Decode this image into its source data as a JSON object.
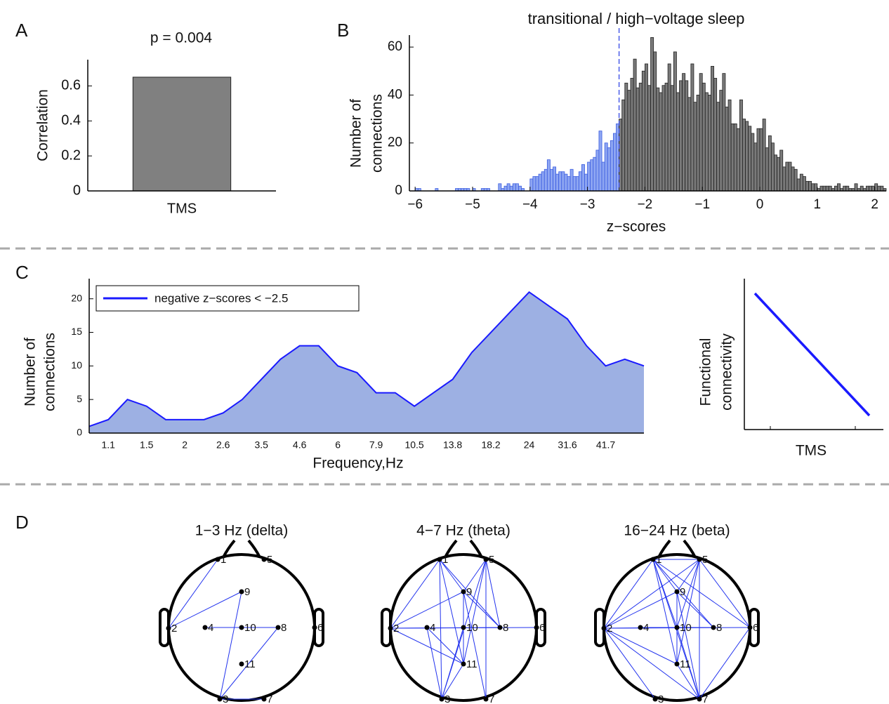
{
  "panel_labels": [
    "A",
    "B",
    "C",
    "D"
  ],
  "chart_data": [
    {
      "type": "bar",
      "title": "p = 0.004",
      "ylabel": "Correlation",
      "categories": [
        "TMS"
      ],
      "values": [
        0.65
      ],
      "color": "#808080",
      "ylim": [
        0,
        0.75
      ],
      "yticks": [
        0,
        0.2,
        0.4,
        0.6
      ]
    },
    {
      "type": "histogram",
      "title": "transitional / high−voltage sleep",
      "ylabel": [
        "Number of",
        "connections"
      ],
      "xlabel": "z−scores",
      "bins": [
        -6,
        -5.95,
        -5.9,
        -5.85,
        -5.8,
        -5.75,
        -5.7,
        -5.65,
        -5.6,
        -5.55,
        -5.5,
        -5.45,
        -5.4,
        -5.35,
        -5.3,
        -5.25,
        -5.2,
        -5.15,
        -5.1,
        -5.05,
        -5,
        -4.95,
        -4.9,
        -4.85,
        -4.8,
        -4.75,
        -4.7,
        -4.65,
        -4.6,
        -4.55,
        -4.5,
        -4.45,
        -4.4,
        -4.35,
        -4.3,
        -4.25,
        -4.2,
        -4.15,
        -4.1,
        -4.05,
        -4,
        -3.95,
        -3.9,
        -3.85,
        -3.8,
        -3.75,
        -3.7,
        -3.65,
        -3.6,
        -3.55,
        -3.5,
        -3.45,
        -3.4,
        -3.35,
        -3.3,
        -3.25,
        -3.2,
        -3.15,
        -3.1,
        -3.05,
        -3,
        -2.95,
        -2.9,
        -2.85,
        -2.8,
        -2.75,
        -2.7,
        -2.65,
        -2.6,
        -2.55,
        -2.5,
        -2.45,
        -2.4,
        -2.35,
        -2.3,
        -2.25,
        -2.2,
        -2.15,
        -2.1,
        -2.05,
        -2,
        -1.95,
        -1.9,
        -1.85,
        -1.8,
        -1.75,
        -1.7,
        -1.65,
        -1.6,
        -1.55,
        -1.5,
        -1.45,
        -1.4,
        -1.35,
        -1.3,
        -1.25,
        -1.2,
        -1.15,
        -1.1,
        -1.05,
        -1,
        -0.95,
        -0.9,
        -0.85,
        -0.8,
        -0.75,
        -0.7,
        -0.65,
        -0.6,
        -0.55,
        -0.5,
        -0.45,
        -0.4,
        -0.35,
        -0.3,
        -0.25,
        -0.2,
        -0.15,
        -0.1,
        -0.05,
        0,
        0.05,
        0.1,
        0.15,
        0.2,
        0.25,
        0.3,
        0.35,
        0.4,
        0.45,
        0.5,
        0.55,
        0.6,
        0.65,
        0.7,
        0.75,
        0.8,
        0.85,
        0.9,
        0.95,
        1,
        1.05,
        1.1,
        1.15,
        1.2,
        1.25,
        1.3,
        1.35,
        1.4,
        1.45,
        1.5,
        1.55,
        1.6,
        1.65,
        1.7,
        1.75,
        1.8,
        1.85,
        1.9,
        1.95,
        2,
        2.05,
        2.1,
        2.15,
        2.2
      ],
      "counts": [
        1,
        1,
        0,
        0,
        0,
        0,
        0,
        1,
        0,
        0,
        0,
        0,
        0,
        0,
        1,
        1,
        1,
        1,
        1,
        0,
        1,
        0,
        0,
        1,
        1,
        1,
        0,
        0,
        0,
        3,
        1,
        2,
        3,
        2,
        3,
        3,
        2,
        1,
        0,
        0,
        5,
        6,
        6,
        7,
        8,
        9,
        13,
        9,
        10,
        7,
        8,
        8,
        7,
        6,
        9,
        6,
        6,
        8,
        11,
        7,
        12,
        13,
        14,
        17,
        25,
        12,
        20,
        18,
        21,
        24,
        28,
        30,
        38,
        45,
        42,
        47,
        55,
        43,
        45,
        50,
        53,
        44,
        64,
        58,
        43,
        41,
        44,
        45,
        53,
        44,
        58,
        41,
        46,
        49,
        46,
        39,
        53,
        37,
        40,
        49,
        45,
        41,
        40,
        52,
        47,
        37,
        42,
        49,
        35,
        38,
        28,
        28,
        26,
        38,
        30,
        29,
        27,
        24,
        20,
        26,
        26,
        30,
        18,
        23,
        20,
        15,
        14,
        17,
        10,
        12,
        12,
        10,
        9,
        5,
        7,
        6,
        4,
        4,
        3,
        3,
        1,
        2,
        2,
        2,
        2,
        1,
        2,
        3,
        1,
        2,
        2,
        1,
        1,
        3,
        1,
        2,
        1,
        2,
        2,
        2,
        3,
        2,
        2,
        1
      ],
      "threshold": -2.45,
      "color_below": "#8ea6f2",
      "edge_below": "#3a5ce0",
      "color_above": "#7a7a7a",
      "edge_above": "#222222",
      "threshold_color": "#4a5ce8",
      "xlim": [
        -6.1,
        2.2
      ],
      "ylim": [
        0,
        65
      ],
      "xticks": [
        {
          "value": -6,
          "label": "−6"
        },
        {
          "value": -5,
          "label": "−5"
        },
        {
          "value": -4,
          "label": "−4"
        },
        {
          "value": -3,
          "label": "−3"
        },
        {
          "value": -2,
          "label": "−2"
        },
        {
          "value": -1,
          "label": "−1"
        },
        0,
        1,
        2
      ],
      "yticks": [
        0,
        20,
        40,
        60
      ]
    },
    {
      "type": "area",
      "ylabel": [
        "Number of",
        "connections"
      ],
      "xlabel": "Frequency,Hz",
      "categories": [
        null,
        "1.1",
        null,
        "1.5",
        null,
        "2",
        null,
        "2.6",
        null,
        "3.5",
        null,
        "4.6",
        null,
        "6",
        null,
        "7.9",
        null,
        "10.5",
        null,
        "13.8",
        null,
        "18.2",
        null,
        "24",
        null,
        "31.6",
        null,
        "41.7",
        null,
        null
      ],
      "series": [
        {
          "name": "negative z−scores < −2.5",
          "color": "#1a1aff",
          "fill": "#9db0e3",
          "values": [
            1,
            2,
            5,
            4,
            2,
            2,
            2,
            3,
            5,
            8,
            11,
            13,
            13,
            10,
            9,
            6,
            6,
            4,
            6,
            8,
            12,
            15,
            18,
            21,
            19,
            17,
            13,
            10,
            11,
            10
          ]
        }
      ],
      "legend": "upper left",
      "ylim": [
        0,
        23
      ],
      "yticks": [
        0,
        5,
        10,
        15,
        20
      ]
    },
    {
      "type": "line",
      "ylabel": [
        "Functional",
        "connectivity"
      ],
      "xlabel": "TMS",
      "color": "#1a1aff"
    }
  ],
  "electrodes": [
    "1",
    "2",
    "3",
    "4",
    "5",
    "6",
    "7",
    "8",
    "9",
    "10",
    "11"
  ],
  "head_maps": [
    {
      "title": "1−3 Hz (delta)",
      "connections": [
        [
          0,
          1
        ],
        [
          1,
          8
        ],
        [
          8,
          2
        ],
        [
          3,
          7
        ],
        [
          7,
          2
        ],
        [
          2,
          6
        ]
      ]
    },
    {
      "title": "4−7 Hz (theta)",
      "connections": [
        [
          0,
          1
        ],
        [
          0,
          8
        ],
        [
          0,
          10
        ],
        [
          0,
          2
        ],
        [
          0,
          7
        ],
        [
          1,
          8
        ],
        [
          1,
          7
        ],
        [
          1,
          10
        ],
        [
          1,
          5
        ],
        [
          3,
          2
        ],
        [
          3,
          10
        ],
        [
          4,
          8
        ],
        [
          4,
          7
        ],
        [
          4,
          10
        ],
        [
          4,
          2
        ],
        [
          4,
          6
        ],
        [
          8,
          7
        ],
        [
          8,
          10
        ],
        [
          8,
          6
        ],
        [
          9,
          10
        ],
        [
          9,
          2
        ],
        [
          10,
          2
        ]
      ]
    },
    {
      "title": "16−24 Hz (beta)",
      "connections": [
        [
          0,
          1
        ],
        [
          0,
          8
        ],
        [
          0,
          9
        ],
        [
          0,
          10
        ],
        [
          0,
          6
        ],
        [
          0,
          7
        ],
        [
          0,
          5
        ],
        [
          0,
          4
        ],
        [
          1,
          4
        ],
        [
          1,
          8
        ],
        [
          1,
          9
        ],
        [
          1,
          10
        ],
        [
          1,
          6
        ],
        [
          1,
          2
        ],
        [
          1,
          5
        ],
        [
          4,
          8
        ],
        [
          4,
          9
        ],
        [
          4,
          10
        ],
        [
          4,
          6
        ],
        [
          4,
          5
        ],
        [
          8,
          10
        ],
        [
          8,
          6
        ],
        [
          9,
          6
        ],
        [
          10,
          6
        ],
        [
          5,
          6
        ],
        [
          3,
          7
        ],
        [
          8,
          7
        ]
      ]
    }
  ]
}
